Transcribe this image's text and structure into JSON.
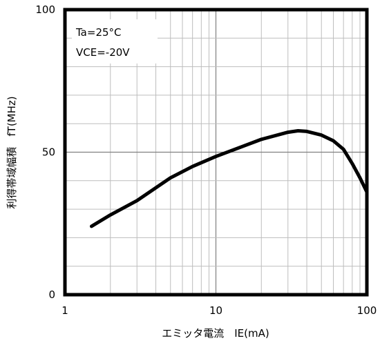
{
  "chart_data": {
    "type": "line",
    "title": "",
    "xlabel": "エミッタ電流　IE(mA)",
    "ylabel": "利得帯域幅積　fT(MHz)",
    "xscale": "log",
    "xlim": [
      1,
      100
    ],
    "ylim": [
      0,
      100
    ],
    "xticks": [
      1,
      10,
      100
    ],
    "xtick_labels": [
      "1",
      "10",
      "100"
    ],
    "yticks": [
      0,
      50,
      100
    ],
    "ytick_labels": [
      "0",
      "50",
      "100"
    ],
    "grid": true,
    "annotations": [
      "Ta=25°C",
      "VCE=-20V"
    ],
    "series": [
      {
        "x": [
          1.5,
          2,
          3,
          4,
          5,
          7,
          10,
          15,
          20,
          30,
          35,
          40,
          50,
          60,
          70,
          80,
          90,
          100
        ],
        "y": [
          24,
          28,
          33,
          37.5,
          41,
          45,
          48.5,
          52,
          54.5,
          57,
          57.5,
          57.3,
          56,
          54,
          51,
          46,
          41,
          36
        ]
      }
    ],
    "colors": {
      "line": "#000000",
      "axis": "#000000",
      "grid": "#7f7f7f"
    }
  }
}
